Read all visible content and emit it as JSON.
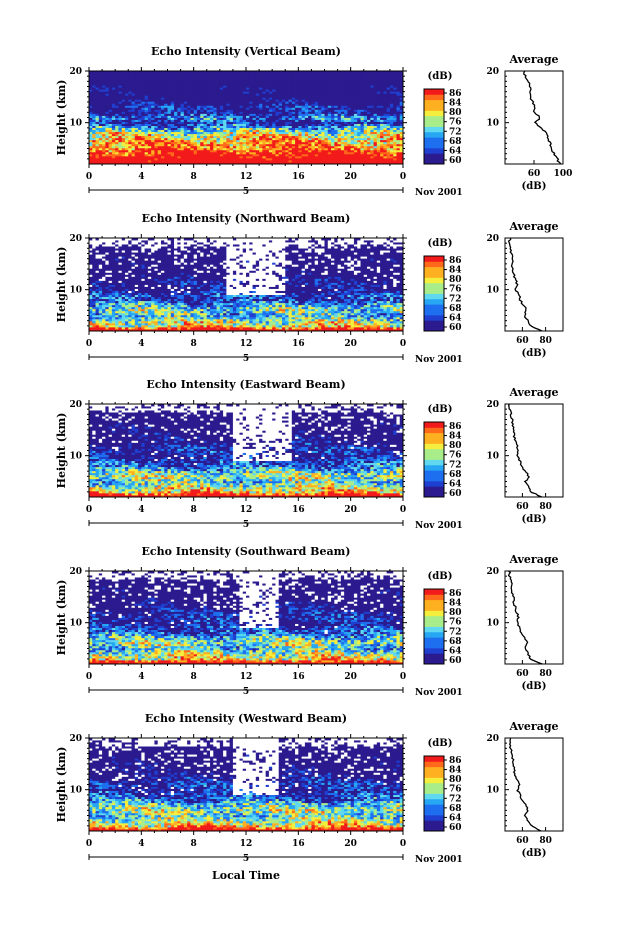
{
  "figure": {
    "date_label": "Nov 2001",
    "xlabel": "Local Time",
    "ylabel": "Height (km)",
    "colorbar_unit": "(dB)",
    "colorbar_ticks": [
      "86",
      "84",
      "80",
      "76",
      "72",
      "68",
      "64",
      "60"
    ],
    "avg_title": "Average",
    "avg_unit": "(dB)",
    "date_day": "5",
    "colormap": [
      "#2b1b8f",
      "#1f3fd0",
      "#1e6ff0",
      "#27a7f3",
      "#5fd8f0",
      "#a8ed8a",
      "#f4ee3e",
      "#ffb020",
      "#ff6a1a",
      "#f21a1a"
    ],
    "missing_color": "#ffffff"
  },
  "chart_data": [
    {
      "type": "heatmap",
      "title": "Echo Intensity (Vertical Beam)",
      "x_ticks": [
        "0",
        "4",
        "8",
        "12",
        "16",
        "20",
        "0"
      ],
      "y_ticks": [
        "20",
        "10"
      ],
      "xlim": [
        0,
        24
      ],
      "ylim": [
        2,
        20
      ],
      "clim": [
        60,
        88
      ],
      "profile_sample_heights_km": [
        2,
        3,
        4,
        5,
        6,
        7,
        8,
        9,
        10,
        11,
        12,
        13,
        14,
        15,
        16,
        17,
        18,
        19,
        20
      ],
      "profile_db_by_height": [
        96,
        92,
        88,
        84,
        82,
        80,
        76,
        70,
        62,
        68,
        60,
        62,
        58,
        54,
        56,
        55,
        52,
        48,
        46
      ],
      "gap_hours": [],
      "average": {
        "xlim": [
          20,
          100
        ],
        "x_ticks": [
          "60",
          "100"
        ],
        "y_ticks": [
          "20",
          "10"
        ]
      }
    },
    {
      "type": "heatmap",
      "title": "Echo Intensity (Northward Beam)",
      "x_ticks": [
        "0",
        "4",
        "8",
        "12",
        "16",
        "20",
        "0"
      ],
      "y_ticks": [
        "20",
        "10"
      ],
      "xlim": [
        0,
        24
      ],
      "ylim": [
        2,
        20
      ],
      "clim": [
        60,
        88
      ],
      "profile_sample_heights_km": [
        2,
        3,
        4,
        5,
        6,
        7,
        8,
        9,
        10,
        11,
        12,
        13,
        14,
        15,
        16,
        17,
        18,
        19,
        20
      ],
      "profile_db_by_height": [
        96,
        78,
        76,
        70,
        74,
        70,
        64,
        64,
        58,
        60,
        58,
        56,
        54,
        54,
        55,
        52,
        52,
        50,
        50
      ],
      "gap_hours": [
        10.5,
        12,
        13.5,
        15
      ],
      "average": {
        "xlim": [
          45,
          95
        ],
        "x_ticks": [
          "60",
          "80"
        ],
        "y_ticks": [
          "20",
          "10"
        ]
      }
    },
    {
      "type": "heatmap",
      "title": "Echo Intensity (Eastward Beam)",
      "x_ticks": [
        "0",
        "4",
        "8",
        "12",
        "16",
        "20",
        "0"
      ],
      "y_ticks": [
        "20",
        "10"
      ],
      "xlim": [
        0,
        24
      ],
      "ylim": [
        2,
        20
      ],
      "clim": [
        60,
        88
      ],
      "profile_sample_heights_km": [
        2,
        3,
        4,
        5,
        6,
        7,
        8,
        9,
        10,
        11,
        12,
        13,
        14,
        15,
        16,
        17,
        18,
        19,
        20
      ],
      "profile_db_by_height": [
        95,
        80,
        76,
        72,
        76,
        72,
        66,
        64,
        60,
        62,
        60,
        58,
        56,
        56,
        54,
        53,
        52,
        50,
        50
      ],
      "gap_hours": [
        11,
        12.5,
        14,
        15.5
      ],
      "average": {
        "xlim": [
          45,
          95
        ],
        "x_ticks": [
          "60",
          "80"
        ],
        "y_ticks": [
          "20",
          "10"
        ]
      }
    },
    {
      "type": "heatmap",
      "title": "Echo Intensity (Southward Beam)",
      "x_ticks": [
        "0",
        "4",
        "8",
        "12",
        "16",
        "20",
        "0"
      ],
      "y_ticks": [
        "20",
        "10"
      ],
      "xlim": [
        0,
        24
      ],
      "ylim": [
        2,
        20
      ],
      "clim": [
        60,
        88
      ],
      "profile_sample_heights_km": [
        2,
        3,
        4,
        5,
        6,
        7,
        8,
        9,
        10,
        11,
        12,
        13,
        14,
        15,
        16,
        17,
        18,
        19,
        20
      ],
      "profile_db_by_height": [
        95,
        79,
        76,
        71,
        75,
        72,
        66,
        64,
        60,
        63,
        60,
        58,
        56,
        55,
        54,
        53,
        52,
        50,
        50
      ],
      "gap_hours": [
        11.5,
        13,
        14.5
      ],
      "average": {
        "xlim": [
          45,
          95
        ],
        "x_ticks": [
          "60",
          "80"
        ],
        "y_ticks": [
          "20",
          "10"
        ]
      }
    },
    {
      "type": "heatmap",
      "title": "Echo Intensity (Westward Beam)",
      "x_ticks": [
        "0",
        "4",
        "8",
        "12",
        "16",
        "20",
        "0"
      ],
      "y_ticks": [
        "20",
        "10"
      ],
      "xlim": [
        0,
        24
      ],
      "ylim": [
        2,
        20
      ],
      "clim": [
        60,
        88
      ],
      "profile_sample_heights_km": [
        2,
        3,
        4,
        5,
        6,
        7,
        8,
        9,
        10,
        11,
        12,
        13,
        14,
        15,
        16,
        17,
        18,
        19,
        20
      ],
      "profile_db_by_height": [
        95,
        80,
        76,
        72,
        76,
        72,
        67,
        64,
        61,
        63,
        60,
        58,
        56,
        55,
        54,
        53,
        52,
        50,
        50
      ],
      "gap_hours": [
        11,
        12.5,
        14.5
      ],
      "average": {
        "xlim": [
          45,
          95
        ],
        "x_ticks": [
          "60",
          "80"
        ],
        "y_ticks": [
          "20",
          "10"
        ]
      }
    }
  ]
}
